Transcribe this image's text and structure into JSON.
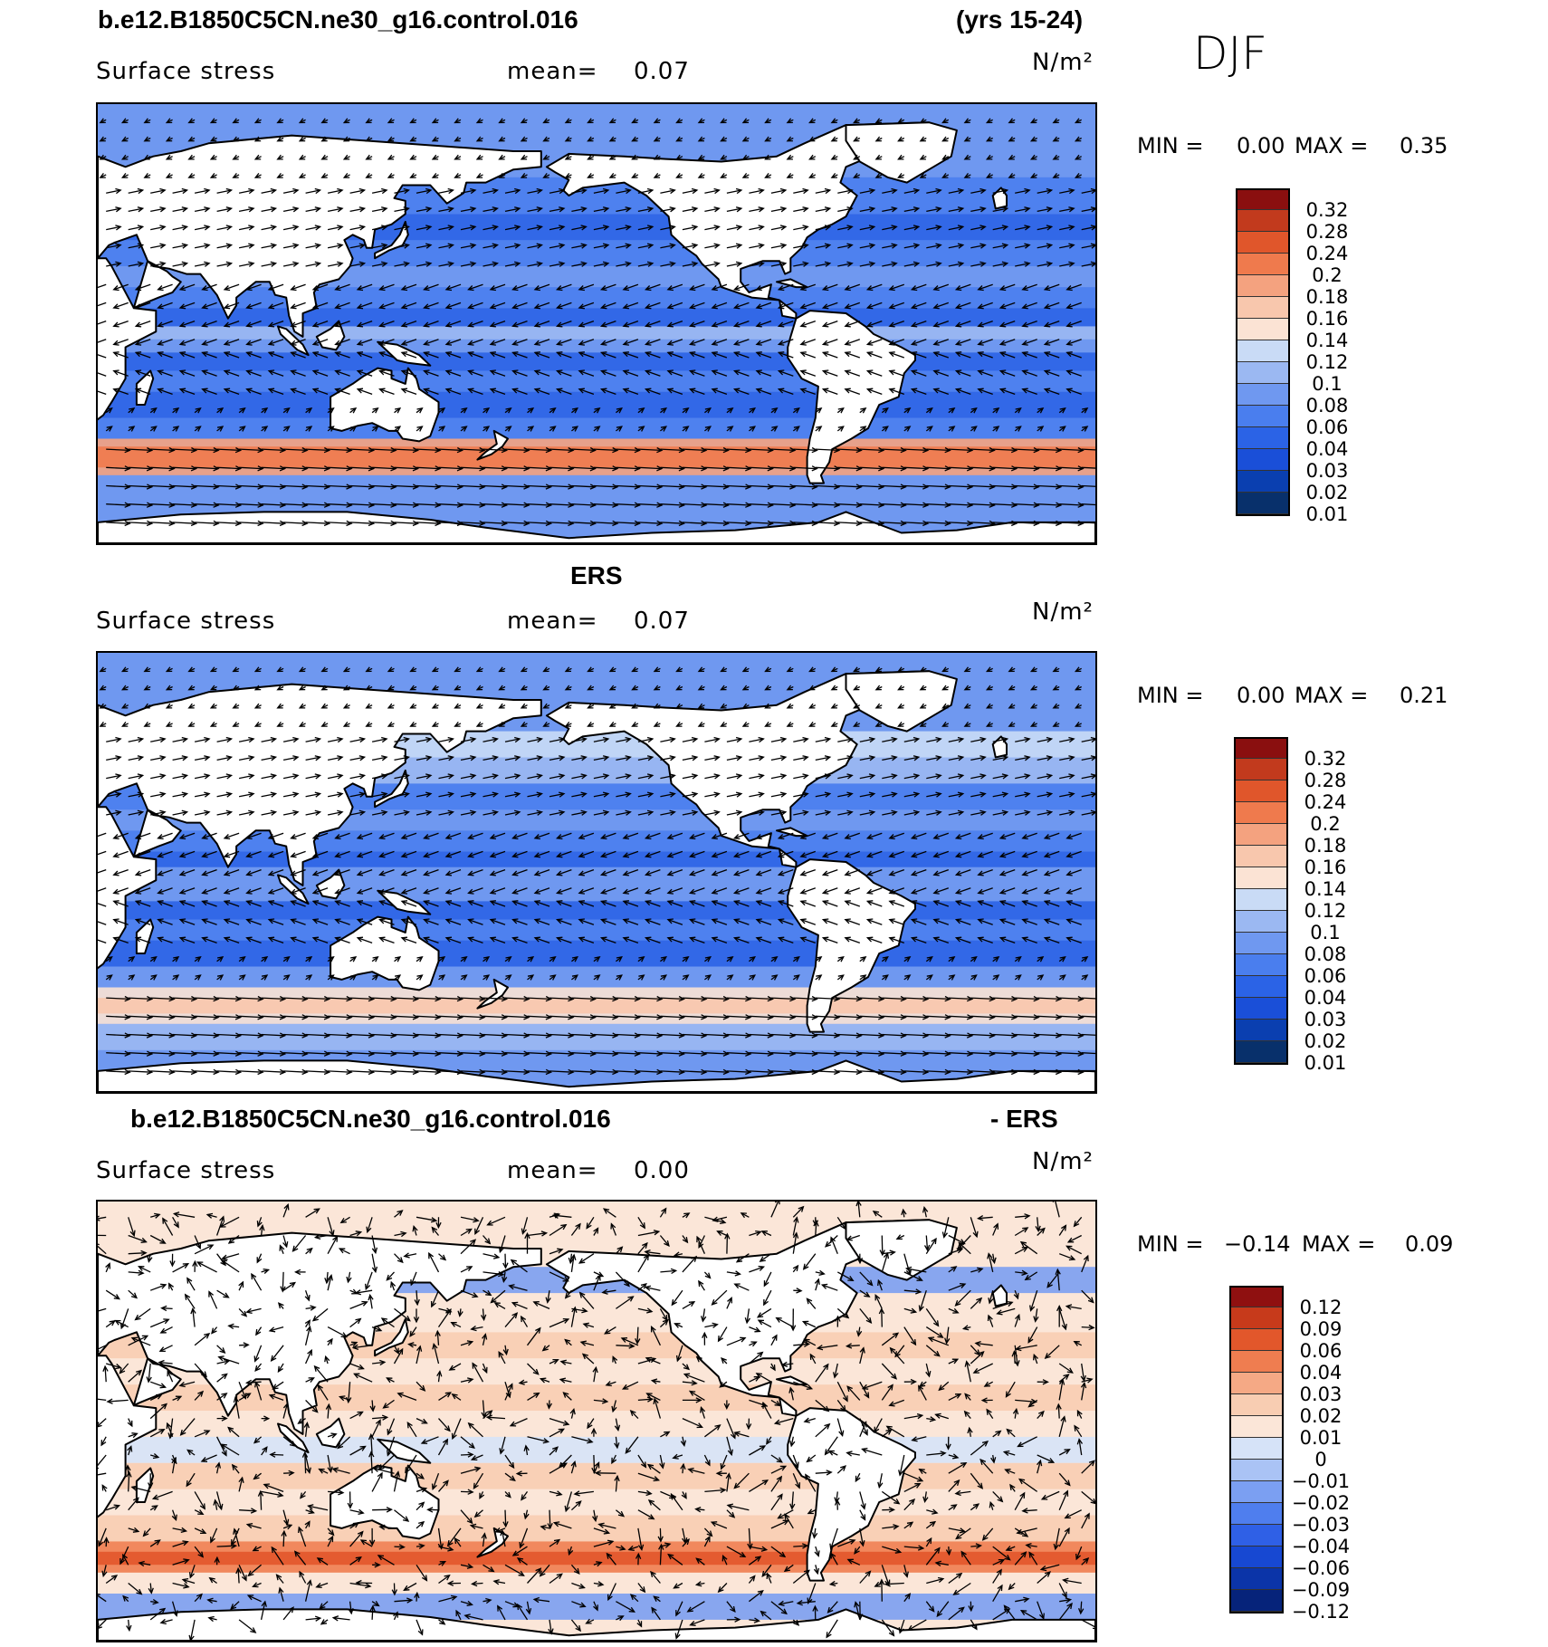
{
  "header": {
    "case_name": "b.e12.B1850C5CN.ne30_g16.control.016",
    "years": "(yrs 15-24)",
    "season": "DJF"
  },
  "diff_title": {
    "case_name": "b.e12.B1850C5CN.ne30_g16.control.016",
    "suffix": "- ERS"
  },
  "obs_title": "ERS",
  "panels": [
    {
      "variable": "Surface stress",
      "mean_label": "mean=",
      "mean_value": "0.07",
      "units": "N/m²",
      "min_label": "MIN =",
      "min_value": "0.00",
      "max_label": "MAX =",
      "max_value": "0.35"
    },
    {
      "variable": "Surface stress",
      "mean_label": "mean=",
      "mean_value": "0.07",
      "units": "N/m²",
      "min_label": "MIN =",
      "min_value": "0.00",
      "max_label": "MAX =",
      "max_value": "0.21"
    },
    {
      "variable": "Surface stress",
      "mean_label": "mean=",
      "mean_value": "0.00",
      "units": "N/m²",
      "min_label": "MIN =",
      "min_value": "−0.14",
      "max_label": "MAX =",
      "max_value": "0.09"
    }
  ],
  "chart_data": [
    {
      "type": "heatmap",
      "subtype": "filled contour map with wind-stress vectors",
      "title": "b.e12.B1850C5CN.ne30_g16.control.016 (yrs 15-24) DJF",
      "variable": "Surface stress",
      "units": "N/m²",
      "mean": 0.07,
      "min": 0.0,
      "max": 0.35,
      "colorbar_levels": [
        0.01,
        0.02,
        0.03,
        0.04,
        0.06,
        0.08,
        0.1,
        0.12,
        0.14,
        0.16,
        0.18,
        0.2,
        0.24,
        0.28,
        0.32
      ],
      "colorbar_labels": [
        "0.32",
        "0.28",
        "0.24",
        "0.2",
        "0.18",
        "0.16",
        "0.14",
        "0.12",
        "0.1",
        "0.08",
        "0.06",
        "0.04",
        "0.03",
        "0.02",
        "0.01"
      ]
    },
    {
      "type": "heatmap",
      "subtype": "filled contour map with wind-stress vectors",
      "title": "ERS",
      "variable": "Surface stress",
      "units": "N/m²",
      "mean": 0.07,
      "min": 0.0,
      "max": 0.21,
      "colorbar_levels": [
        0.01,
        0.02,
        0.03,
        0.04,
        0.06,
        0.08,
        0.1,
        0.12,
        0.14,
        0.16,
        0.18,
        0.2,
        0.24,
        0.28,
        0.32
      ],
      "colorbar_labels": [
        "0.32",
        "0.28",
        "0.24",
        "0.2",
        "0.18",
        "0.16",
        "0.14",
        "0.12",
        "0.1",
        "0.08",
        "0.06",
        "0.04",
        "0.03",
        "0.02",
        "0.01"
      ]
    },
    {
      "type": "heatmap",
      "subtype": "filled contour difference map with vector differences",
      "title": "b.e12.B1850C5CN.ne30_g16.control.016 - ERS",
      "variable": "Surface stress",
      "units": "N/m²",
      "mean": 0.0,
      "min": -0.14,
      "max": 0.09,
      "colorbar_levels": [
        -0.12,
        -0.09,
        -0.06,
        -0.04,
        -0.03,
        -0.02,
        -0.01,
        0,
        0.01,
        0.02,
        0.03,
        0.04,
        0.06,
        0.09,
        0.12
      ],
      "colorbar_labels": [
        "0.12",
        "0.09",
        "0.06",
        "0.04",
        "0.03",
        "0.02",
        "0.01",
        "0",
        "−0.01",
        "−0.02",
        "−0.03",
        "−0.04",
        "−0.06",
        "−0.09",
        "−0.12"
      ]
    }
  ],
  "colors": {
    "abs_scale": [
      "#08306b",
      "#0a3fb0",
      "#1a4fd8",
      "#2b63e6",
      "#4a7eee",
      "#6f98f0",
      "#9bb8f2",
      "#c9dbf6",
      "#fbe3d4",
      "#f8c7ad",
      "#f4a27f",
      "#ef7a4d",
      "#e0562b",
      "#c23a1d",
      "#8a0f0f"
    ],
    "diff_scale": [
      "#06237a",
      "#0b34a8",
      "#1748d2",
      "#2f60e6",
      "#4f7eee",
      "#7b9ff2",
      "#aac3f5",
      "#d6e3f8",
      "#fbe6d8",
      "#f8cdb2",
      "#f5a985",
      "#ef7d50",
      "#e2572b",
      "#c73a1b",
      "#8f1010"
    ],
    "land": "#ffffff",
    "coast": "#000000"
  }
}
